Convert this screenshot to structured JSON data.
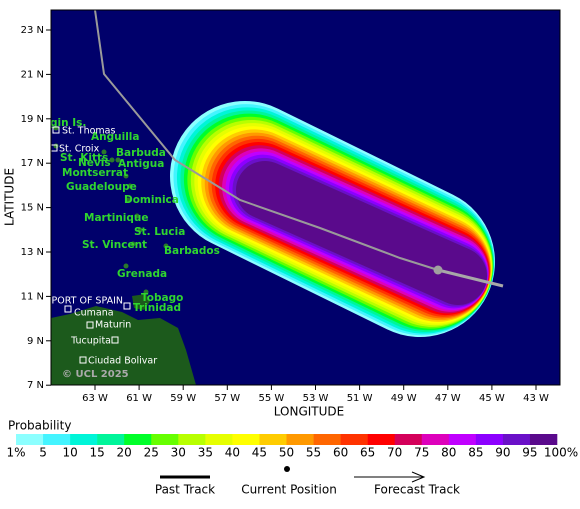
{
  "map": {
    "x_label": "LONGITUDE",
    "y_label": "LATITUDE",
    "lon_ticks": [
      "63 W",
      "61 W",
      "59 W",
      "57 W",
      "55 W",
      "53 W",
      "51 W",
      "49 W",
      "47 W",
      "45 W",
      "43 W"
    ],
    "lat_ticks": [
      "23 N",
      "21 N",
      "19 N",
      "17 N",
      "15 N",
      "13 N",
      "11 N",
      "9 N",
      "7 N"
    ],
    "ocean_color": "#00006b",
    "land_color": "#1c5a1c",
    "copyright": "© UCL 2025",
    "islands": [
      "gin Is.",
      "Anguilla",
      "Barbuda",
      "St. Kitts",
      "Nevis",
      "Antigua",
      "Montserrat",
      "Guadeloupe",
      "Dominica",
      "Martinique",
      "St. Lucia",
      "St. Vincent",
      "Barbados",
      "Grenada",
      "Tobago",
      "Trinidad"
    ],
    "towns": [
      "St. Thomas",
      "St. Croix",
      "PORT OF SPAIN",
      "Cumana",
      "Maturin",
      "Tucupita",
      "Ciudad Bolivar"
    ]
  },
  "legend": {
    "title": "Probability",
    "labels": [
      "1%",
      "5",
      "10",
      "15",
      "20",
      "25",
      "30",
      "35",
      "40",
      "45",
      "50",
      "55",
      "60",
      "65",
      "70",
      "75",
      "80",
      "85",
      "90",
      "95",
      "100%"
    ],
    "colors": [
      "#8cffff",
      "#44f4ff",
      "#00f5d8",
      "#00f59a",
      "#00ff2a",
      "#66ff00",
      "#b8ff00",
      "#e6ff00",
      "#ffff00",
      "#ffcc00",
      "#ff9900",
      "#ff6600",
      "#ff3300",
      "#ff0000",
      "#d4005a",
      "#dd00bb",
      "#c000ff",
      "#8c00ff",
      "#6a10c8",
      "#5a0a8c"
    ],
    "keys": [
      "Past Track",
      "Current Position",
      "Forecast Track"
    ]
  }
}
